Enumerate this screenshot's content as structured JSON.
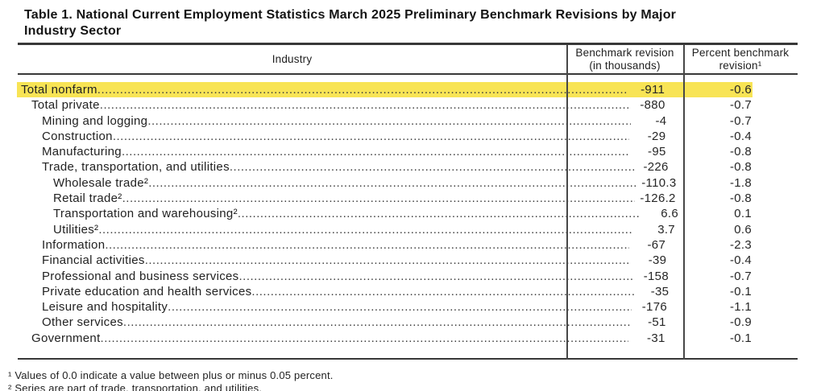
{
  "title": {
    "line1": "Table 1. National Current Employment Statistics March 2025 Preliminary Benchmark Revisions by Major",
    "line2": "Industry Sector"
  },
  "table": {
    "headers": {
      "industry": "Industry",
      "benchmark_line1": "Benchmark revision",
      "benchmark_line2": "(in thousands)",
      "percent_line1": "Percent benchmark",
      "percent_line2": "revision¹"
    },
    "highlight_color": "#f8e455",
    "rows": [
      {
        "industry": "Total nonfarm",
        "indent": 0,
        "benchmark_revision": "-911",
        "percent_revision": "-0.6",
        "highlight": true
      },
      {
        "industry": "Total private",
        "indent": 1,
        "benchmark_revision": "-880",
        "percent_revision": "-0.7"
      },
      {
        "industry": "Mining and logging",
        "indent": 2,
        "benchmark_revision": "-4",
        "percent_revision": "-0.7"
      },
      {
        "industry": "Construction",
        "indent": 2,
        "benchmark_revision": "-29",
        "percent_revision": "-0.4"
      },
      {
        "industry": "Manufacturing",
        "indent": 2,
        "benchmark_revision": "-95",
        "percent_revision": "-0.8"
      },
      {
        "industry": "Trade, transportation, and utilities",
        "indent": 2,
        "benchmark_revision": "-226",
        "percent_revision": "-0.8"
      },
      {
        "industry": "Wholesale trade²",
        "indent": 3,
        "benchmark_revision": "-110.3",
        "percent_revision": "-1.8"
      },
      {
        "industry": "Retail trade²",
        "indent": 3,
        "benchmark_revision": "-126.2",
        "percent_revision": "-0.8"
      },
      {
        "industry": "Transportation and warehousing²",
        "indent": 3,
        "benchmark_revision": "6.6",
        "percent_revision": "0.1"
      },
      {
        "industry": "Utilities²",
        "indent": 3,
        "benchmark_revision": "3.7",
        "percent_revision": "0.6"
      },
      {
        "industry": "Information",
        "indent": 2,
        "benchmark_revision": "-67",
        "percent_revision": "-2.3"
      },
      {
        "industry": "Financial activities",
        "indent": 2,
        "benchmark_revision": "-39",
        "percent_revision": "-0.4"
      },
      {
        "industry": "Professional and business services",
        "indent": 2,
        "benchmark_revision": "-158",
        "percent_revision": "-0.7"
      },
      {
        "industry": "Private education and health services",
        "indent": 2,
        "benchmark_revision": "-35",
        "percent_revision": "-0.1"
      },
      {
        "industry": "Leisure and hospitality",
        "indent": 2,
        "benchmark_revision": "-176",
        "percent_revision": "-1.1"
      },
      {
        "industry": "Other services",
        "indent": 2,
        "benchmark_revision": "-51",
        "percent_revision": "-0.9"
      },
      {
        "industry": "Government",
        "indent": 1,
        "benchmark_revision": "-31",
        "percent_revision": "-0.1"
      }
    ]
  },
  "footnotes": [
    "¹ Values of 0.0 indicate a value between plus or minus 0.05 percent.",
    "² Series are part of trade, transportation, and utilities."
  ]
}
